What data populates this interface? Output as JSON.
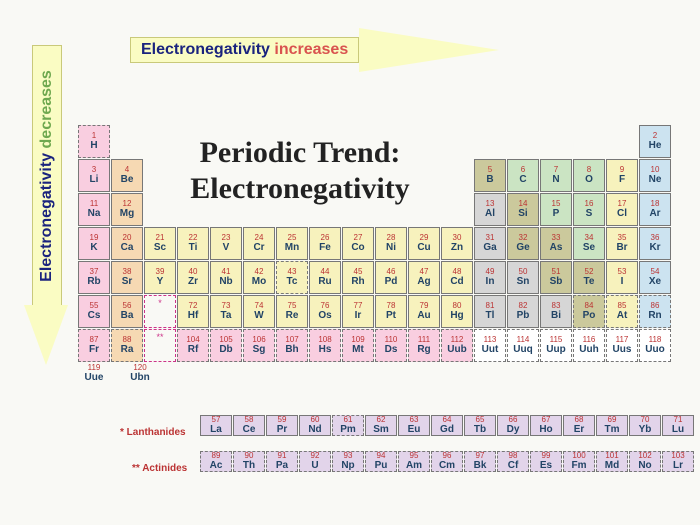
{
  "title_line1": "Periodic Trend:",
  "title_line2": "Electronegativity",
  "h_arrow_word1": "Electronegativity ",
  "h_arrow_word2": "increases",
  "v_arrow_word1": "Electronegativity ",
  "v_arrow_word2": "decreases",
  "lan_label": "* Lanthanides",
  "act_label": "** Actinides",
  "colors": {
    "pink": "#f9cee0",
    "peach": "#f6d9b3",
    "blue": "#cce3f0",
    "yellow": "#f7f2bd",
    "teal": "#cbe4c3",
    "olive": "#cbc99c",
    "grey": "#d6d6d6",
    "violet": "#e2d4ea"
  },
  "elements": [
    {
      "n": 1,
      "s": "H",
      "r": 1,
      "c": 1,
      "col": "pink",
      "d": 1
    },
    {
      "n": 2,
      "s": "He",
      "r": 1,
      "c": 18,
      "col": "blue"
    },
    {
      "n": 3,
      "s": "Li",
      "r": 2,
      "c": 1,
      "col": "pink"
    },
    {
      "n": 4,
      "s": "Be",
      "r": 2,
      "c": 2,
      "col": "peach"
    },
    {
      "n": 5,
      "s": "B",
      "r": 2,
      "c": 13,
      "col": "olive"
    },
    {
      "n": 6,
      "s": "C",
      "r": 2,
      "c": 14,
      "col": "teal"
    },
    {
      "n": 7,
      "s": "N",
      "r": 2,
      "c": 15,
      "col": "teal"
    },
    {
      "n": 8,
      "s": "O",
      "r": 2,
      "c": 16,
      "col": "teal"
    },
    {
      "n": 9,
      "s": "F",
      "r": 2,
      "c": 17,
      "col": "yellow"
    },
    {
      "n": 10,
      "s": "Ne",
      "r": 2,
      "c": 18,
      "col": "blue"
    },
    {
      "n": 11,
      "s": "Na",
      "r": 3,
      "c": 1,
      "col": "pink"
    },
    {
      "n": 12,
      "s": "Mg",
      "r": 3,
      "c": 2,
      "col": "peach"
    },
    {
      "n": 13,
      "s": "Al",
      "r": 3,
      "c": 13,
      "col": "grey"
    },
    {
      "n": 14,
      "s": "Si",
      "r": 3,
      "c": 14,
      "col": "olive"
    },
    {
      "n": 15,
      "s": "P",
      "r": 3,
      "c": 15,
      "col": "teal"
    },
    {
      "n": 16,
      "s": "S",
      "r": 3,
      "c": 16,
      "col": "teal"
    },
    {
      "n": 17,
      "s": "Cl",
      "r": 3,
      "c": 17,
      "col": "yellow"
    },
    {
      "n": 18,
      "s": "Ar",
      "r": 3,
      "c": 18,
      "col": "blue"
    },
    {
      "n": 19,
      "s": "K",
      "r": 4,
      "c": 1,
      "col": "pink"
    },
    {
      "n": 20,
      "s": "Ca",
      "r": 4,
      "c": 2,
      "col": "peach"
    },
    {
      "n": 21,
      "s": "Sc",
      "r": 4,
      "c": 3,
      "col": "yellow"
    },
    {
      "n": 22,
      "s": "Ti",
      "r": 4,
      "c": 4,
      "col": "yellow"
    },
    {
      "n": 23,
      "s": "V",
      "r": 4,
      "c": 5,
      "col": "yellow"
    },
    {
      "n": 24,
      "s": "Cr",
      "r": 4,
      "c": 6,
      "col": "yellow"
    },
    {
      "n": 25,
      "s": "Mn",
      "r": 4,
      "c": 7,
      "col": "yellow"
    },
    {
      "n": 26,
      "s": "Fe",
      "r": 4,
      "c": 8,
      "col": "yellow"
    },
    {
      "n": 27,
      "s": "Co",
      "r": 4,
      "c": 9,
      "col": "yellow"
    },
    {
      "n": 28,
      "s": "Ni",
      "r": 4,
      "c": 10,
      "col": "yellow"
    },
    {
      "n": 29,
      "s": "Cu",
      "r": 4,
      "c": 11,
      "col": "yellow"
    },
    {
      "n": 30,
      "s": "Zn",
      "r": 4,
      "c": 12,
      "col": "yellow"
    },
    {
      "n": 31,
      "s": "Ga",
      "r": 4,
      "c": 13,
      "col": "grey"
    },
    {
      "n": 32,
      "s": "Ge",
      "r": 4,
      "c": 14,
      "col": "olive"
    },
    {
      "n": 33,
      "s": "As",
      "r": 4,
      "c": 15,
      "col": "olive"
    },
    {
      "n": 34,
      "s": "Se",
      "r": 4,
      "c": 16,
      "col": "teal"
    },
    {
      "n": 35,
      "s": "Br",
      "r": 4,
      "c": 17,
      "col": "yellow"
    },
    {
      "n": 36,
      "s": "Kr",
      "r": 4,
      "c": 18,
      "col": "blue"
    },
    {
      "n": 37,
      "s": "Rb",
      "r": 5,
      "c": 1,
      "col": "pink"
    },
    {
      "n": 38,
      "s": "Sr",
      "r": 5,
      "c": 2,
      "col": "peach"
    },
    {
      "n": 39,
      "s": "Y",
      "r": 5,
      "c": 3,
      "col": "yellow"
    },
    {
      "n": 40,
      "s": "Zr",
      "r": 5,
      "c": 4,
      "col": "yellow"
    },
    {
      "n": 41,
      "s": "Nb",
      "r": 5,
      "c": 5,
      "col": "yellow"
    },
    {
      "n": 42,
      "s": "Mo",
      "r": 5,
      "c": 6,
      "col": "yellow"
    },
    {
      "n": 43,
      "s": "Tc",
      "r": 5,
      "c": 7,
      "col": "yellow",
      "d": 1
    },
    {
      "n": 44,
      "s": "Ru",
      "r": 5,
      "c": 8,
      "col": "yellow"
    },
    {
      "n": 45,
      "s": "Rh",
      "r": 5,
      "c": 9,
      "col": "yellow"
    },
    {
      "n": 46,
      "s": "Pd",
      "r": 5,
      "c": 10,
      "col": "yellow"
    },
    {
      "n": 47,
      "s": "Ag",
      "r": 5,
      "c": 11,
      "col": "yellow"
    },
    {
      "n": 48,
      "s": "Cd",
      "r": 5,
      "c": 12,
      "col": "yellow"
    },
    {
      "n": 49,
      "s": "In",
      "r": 5,
      "c": 13,
      "col": "grey"
    },
    {
      "n": 50,
      "s": "Sn",
      "r": 5,
      "c": 14,
      "col": "grey"
    },
    {
      "n": 51,
      "s": "Sb",
      "r": 5,
      "c": 15,
      "col": "olive"
    },
    {
      "n": 52,
      "s": "Te",
      "r": 5,
      "c": 16,
      "col": "olive"
    },
    {
      "n": 53,
      "s": "I",
      "r": 5,
      "c": 17,
      "col": "yellow"
    },
    {
      "n": 54,
      "s": "Xe",
      "r": 5,
      "c": 18,
      "col": "blue"
    },
    {
      "n": 55,
      "s": "Cs",
      "r": 6,
      "c": 1,
      "col": "pink"
    },
    {
      "n": 56,
      "s": "Ba",
      "r": 6,
      "c": 2,
      "col": "peach"
    },
    {
      "n": 72,
      "s": "Hf",
      "r": 6,
      "c": 4,
      "col": "yellow"
    },
    {
      "n": 73,
      "s": "Ta",
      "r": 6,
      "c": 5,
      "col": "yellow"
    },
    {
      "n": 74,
      "s": "W",
      "r": 6,
      "c": 6,
      "col": "yellow"
    },
    {
      "n": 75,
      "s": "Re",
      "r": 6,
      "c": 7,
      "col": "yellow"
    },
    {
      "n": 76,
      "s": "Os",
      "r": 6,
      "c": 8,
      "col": "yellow"
    },
    {
      "n": 77,
      "s": "Ir",
      "r": 6,
      "c": 9,
      "col": "yellow"
    },
    {
      "n": 78,
      "s": "Pt",
      "r": 6,
      "c": 10,
      "col": "yellow"
    },
    {
      "n": 79,
      "s": "Au",
      "r": 6,
      "c": 11,
      "col": "yellow"
    },
    {
      "n": 80,
      "s": "Hg",
      "r": 6,
      "c": 12,
      "col": "yellow"
    },
    {
      "n": 81,
      "s": "Tl",
      "r": 6,
      "c": 13,
      "col": "grey"
    },
    {
      "n": 82,
      "s": "Pb",
      "r": 6,
      "c": 14,
      "col": "grey"
    },
    {
      "n": 83,
      "s": "Bi",
      "r": 6,
      "c": 15,
      "col": "grey"
    },
    {
      "n": 84,
      "s": "Po",
      "r": 6,
      "c": 16,
      "col": "olive",
      "d": 1
    },
    {
      "n": 85,
      "s": "At",
      "r": 6,
      "c": 17,
      "col": "yellow",
      "d": 1
    },
    {
      "n": 86,
      "s": "Rn",
      "r": 6,
      "c": 18,
      "col": "blue",
      "d": 1
    },
    {
      "n": 87,
      "s": "Fr",
      "r": 7,
      "c": 1,
      "col": "pink",
      "d": 1
    },
    {
      "n": 88,
      "s": "Ra",
      "r": 7,
      "c": 2,
      "col": "peach",
      "d": 1
    },
    {
      "n": 104,
      "s": "Rf",
      "r": 7,
      "c": 4,
      "col": "pink",
      "d": 1
    },
    {
      "n": 105,
      "s": "Db",
      "r": 7,
      "c": 5,
      "col": "pink",
      "d": 1
    },
    {
      "n": 106,
      "s": "Sg",
      "r": 7,
      "c": 6,
      "col": "pink",
      "d": 1
    },
    {
      "n": 107,
      "s": "Bh",
      "r": 7,
      "c": 7,
      "col": "pink",
      "d": 1
    },
    {
      "n": 108,
      "s": "Hs",
      "r": 7,
      "c": 8,
      "col": "pink",
      "d": 1
    },
    {
      "n": 109,
      "s": "Mt",
      "r": 7,
      "c": 9,
      "col": "pink",
      "d": 1
    },
    {
      "n": 110,
      "s": "Ds",
      "r": 7,
      "c": 10,
      "col": "pink",
      "d": 1
    },
    {
      "n": 111,
      "s": "Rg",
      "r": 7,
      "c": 11,
      "col": "pink",
      "d": 1
    },
    {
      "n": 112,
      "s": "Uub",
      "r": 7,
      "c": 12,
      "col": "pink",
      "d": 1
    },
    {
      "n": 113,
      "s": "Uut",
      "r": 7,
      "c": 13,
      "col": "",
      "d": 1
    },
    {
      "n": 114,
      "s": "Uuq",
      "r": 7,
      "c": 14,
      "col": "",
      "d": 1
    },
    {
      "n": 115,
      "s": "Uup",
      "r": 7,
      "c": 15,
      "col": "",
      "d": 1
    },
    {
      "n": 116,
      "s": "Uuh",
      "r": 7,
      "c": 16,
      "col": "",
      "d": 1
    },
    {
      "n": 117,
      "s": "Uus",
      "r": 7,
      "c": 17,
      "col": "",
      "d": 1
    },
    {
      "n": 118,
      "s": "Uuo",
      "r": 7,
      "c": 18,
      "col": "",
      "d": 1
    }
  ],
  "lanthanides": [
    {
      "n": 57,
      "s": "La"
    },
    {
      "n": 58,
      "s": "Ce"
    },
    {
      "n": 59,
      "s": "Pr"
    },
    {
      "n": 60,
      "s": "Nd"
    },
    {
      "n": 61,
      "s": "Pm",
      "d": 1
    },
    {
      "n": 62,
      "s": "Sm"
    },
    {
      "n": 63,
      "s": "Eu"
    },
    {
      "n": 64,
      "s": "Gd"
    },
    {
      "n": 65,
      "s": "Tb"
    },
    {
      "n": 66,
      "s": "Dy"
    },
    {
      "n": 67,
      "s": "Ho"
    },
    {
      "n": 68,
      "s": "Er"
    },
    {
      "n": 69,
      "s": "Tm"
    },
    {
      "n": 70,
      "s": "Yb"
    },
    {
      "n": 71,
      "s": "Lu"
    }
  ],
  "actinides": [
    {
      "n": 89,
      "s": "Ac",
      "d": 1
    },
    {
      "n": 90,
      "s": "Th",
      "d": 1
    },
    {
      "n": 91,
      "s": "Pa",
      "d": 1
    },
    {
      "n": 92,
      "s": "U",
      "d": 1
    },
    {
      "n": 93,
      "s": "Np",
      "d": 1
    },
    {
      "n": 94,
      "s": "Pu",
      "d": 1
    },
    {
      "n": 95,
      "s": "Am",
      "d": 1
    },
    {
      "n": 96,
      "s": "Cm",
      "d": 1
    },
    {
      "n": 97,
      "s": "Bk",
      "d": 1
    },
    {
      "n": 98,
      "s": "Cf",
      "d": 1
    },
    {
      "n": 99,
      "s": "Es",
      "d": 1
    },
    {
      "n": 100,
      "s": "Fm",
      "d": 1
    },
    {
      "n": 101,
      "s": "Md",
      "d": 1
    },
    {
      "n": 102,
      "s": "No",
      "d": 1
    },
    {
      "n": 103,
      "s": "Lr",
      "d": 1
    }
  ],
  "extra_period": [
    {
      "n": 119,
      "s": "Uue"
    },
    {
      "n": 120,
      "s": "Ubn"
    }
  ]
}
